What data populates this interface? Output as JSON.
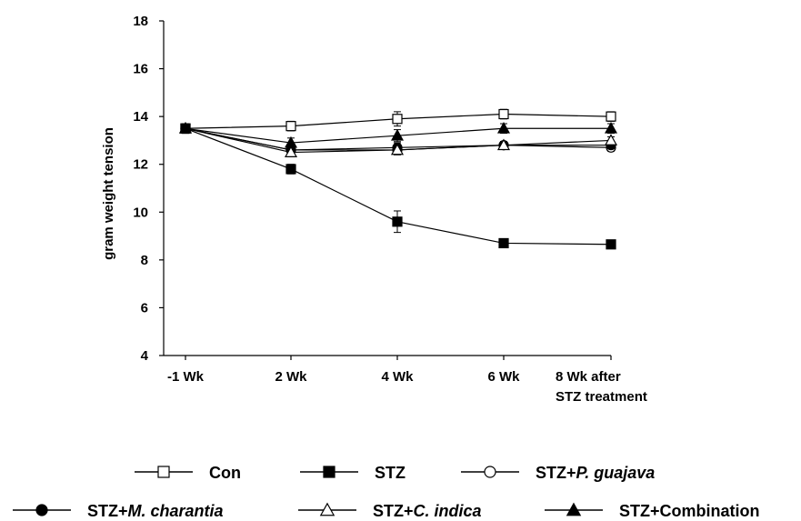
{
  "chart_data": {
    "type": "line",
    "title": "",
    "xlabel": "",
    "ylabel": "gram weight tension",
    "ylim": [
      4,
      18
    ],
    "yticks": [
      4,
      6,
      8,
      10,
      12,
      14,
      16,
      18
    ],
    "categories": [
      "-1 Wk",
      "2 Wk",
      "4 Wk",
      "6 Wk",
      "8 Wk after STZ treatment"
    ],
    "grid": false,
    "legend_position": "bottom",
    "series": [
      {
        "name": "Con",
        "marker": "open-square",
        "values": [
          13.5,
          13.6,
          13.9,
          14.1,
          14.0
        ],
        "errors": [
          0.2,
          0.2,
          0.3,
          0.2,
          0.2
        ]
      },
      {
        "name": "STZ",
        "marker": "filled-square",
        "values": [
          13.5,
          11.8,
          9.6,
          8.7,
          8.65
        ],
        "errors": [
          0.2,
          0.2,
          0.45,
          0.1,
          0.15
        ]
      },
      {
        "name": "STZ+P. guajava",
        "name_prefix": "STZ+",
        "name_italic": "P. guajava",
        "name_suffix": "",
        "marker": "open-circle",
        "values": [
          13.5,
          12.6,
          12.6,
          12.8,
          12.7
        ],
        "errors": [
          0.2,
          0.15,
          0.2,
          0.15,
          0.15
        ]
      },
      {
        "name": "STZ+M. charantia",
        "name_prefix": "STZ+",
        "name_italic": "M. charantia",
        "name_suffix": "",
        "marker": "filled-circle",
        "values": [
          13.5,
          12.6,
          12.7,
          12.8,
          12.8
        ],
        "errors": [
          0.2,
          0.15,
          0.2,
          0.15,
          0.15
        ]
      },
      {
        "name": "STZ+C. indica",
        "name_prefix": "STZ+",
        "name_italic": "C. indica",
        "name_suffix": "",
        "marker": "open-triangle",
        "values": [
          13.5,
          12.5,
          12.6,
          12.8,
          13.0
        ],
        "errors": [
          0.2,
          0.15,
          0.2,
          0.15,
          0.15
        ]
      },
      {
        "name": "STZ+Combination",
        "marker": "filled-triangle",
        "values": [
          13.5,
          12.9,
          13.2,
          13.5,
          13.5
        ],
        "errors": [
          0.2,
          0.2,
          0.25,
          0.2,
          0.2
        ]
      }
    ]
  }
}
